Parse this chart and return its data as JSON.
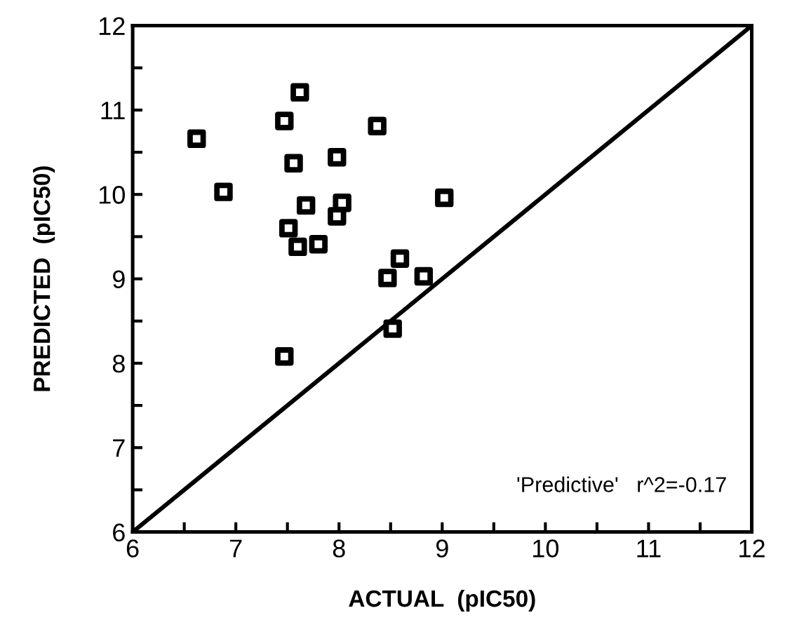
{
  "chart_data": {
    "type": "scatter",
    "xlabel": "ACTUAL  (pIC50)",
    "ylabel": "PREDICTED  (pIC50)",
    "xlim": [
      6,
      12
    ],
    "ylim": [
      6,
      12
    ],
    "xticks": [
      6,
      {
        "value": 6.5,
        "label": null
      },
      7,
      {
        "value": 7.5,
        "label": null
      },
      8,
      {
        "value": 8.5,
        "label": null
      },
      9,
      {
        "value": 9.5,
        "label": null
      },
      10,
      {
        "value": 10.5,
        "label": null
      },
      11,
      {
        "value": 11.5,
        "label": null
      },
      12
    ],
    "yticks": [
      6,
      {
        "value": 6.5,
        "label": null
      },
      7,
      {
        "value": 7.5,
        "label": null
      },
      8,
      {
        "value": 8.5,
        "label": null
      },
      9,
      {
        "value": 9.5,
        "label": null
      },
      10,
      {
        "value": 10.5,
        "label": null
      },
      11,
      {
        "value": 11.5,
        "label": null
      },
      12
    ],
    "marker": "square",
    "grid": false,
    "legend": false,
    "annotations": [
      "'Predictive'   r^2=-0.17"
    ],
    "series": [
      {
        "color": "#000000",
        "x": [
          6.62,
          6.88,
          7.62,
          7.47,
          7.56,
          7.98,
          7.68,
          8.03,
          7.98,
          7.51,
          7.6,
          7.8,
          7.47,
          8.37,
          9.02,
          8.59,
          8.47,
          8.82,
          8.52
        ],
        "values": [
          10.66,
          10.03,
          11.21,
          10.87,
          10.37,
          10.44,
          9.87,
          9.9,
          9.74,
          9.6,
          9.38,
          9.41,
          8.08,
          10.81,
          9.96,
          9.24,
          9.01,
          9.03,
          8.41
        ]
      },
      {
        "type": "line",
        "color": "#000000",
        "marker": "none",
        "line_style": "solid",
        "x": [
          6,
          12
        ],
        "values": [
          6,
          12
        ]
      }
    ]
  }
}
